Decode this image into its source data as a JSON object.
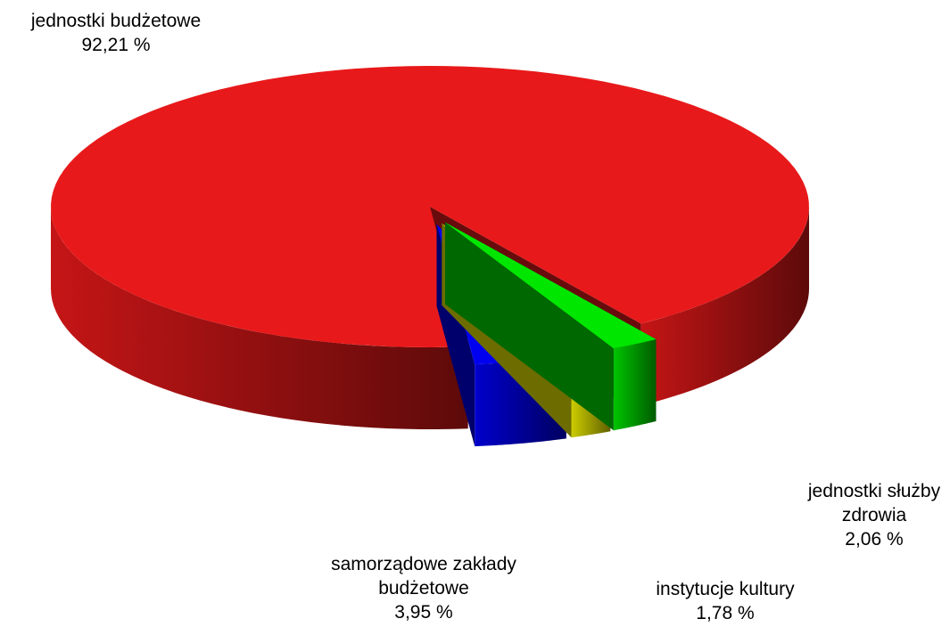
{
  "chart_data": {
    "type": "pie3d",
    "categories": [
      "jednostki budżetowe",
      "samorządowe zakłady budżetowe",
      "instytucje kultury",
      "jednostki służby zdrowia"
    ],
    "values": [
      92.21,
      3.95,
      1.78,
      2.06
    ],
    "value_labels": [
      "92,21 %",
      "3,95 %",
      "1,78 %",
      "2,06 %"
    ],
    "colors": [
      "#e8191a",
      "#0000f0",
      "#f0f000",
      "#00e600"
    ]
  }
}
